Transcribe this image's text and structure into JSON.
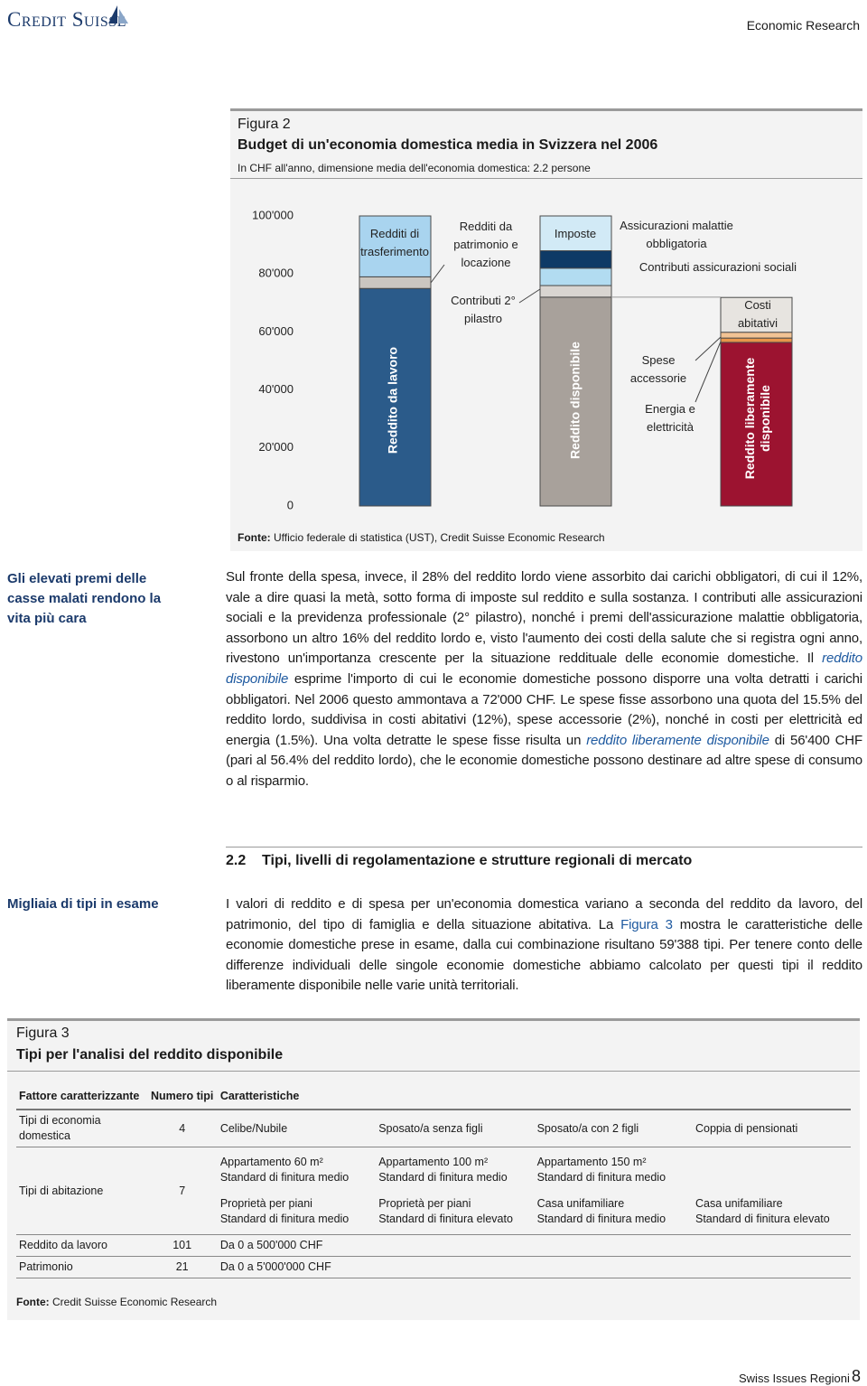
{
  "header": {
    "logo": "Credit Suisse",
    "unit": "Economic Research"
  },
  "figure2": {
    "number": "Figura 2",
    "title": "Budget di un'economia domestica media in Svizzera nel 2006",
    "subtitle": "In CHF all'anno, dimensione media dell'economia domestica: 2.2 persone",
    "source_label": "Fonte:",
    "source": "Ufficio federale di statistica (UST), Credit Suisse Economic Research"
  },
  "chart_data": {
    "type": "stacked_bar",
    "ylim": [
      0,
      100000
    ],
    "yticks": [
      0,
      {
        "value": 20000,
        "label": "20'000"
      },
      {
        "value": 40000,
        "label": "40'000"
      },
      {
        "value": 60000,
        "label": "60'000"
      },
      {
        "value": 80000,
        "label": "80'000"
      },
      {
        "value": 100000,
        "label": "100'000"
      }
    ],
    "grid": false,
    "bars": [
      {
        "segments": [
          {
            "name": "Reddito da lavoro",
            "value": 75000,
            "color": "#2b5b8a"
          },
          {
            "name": "Redditi da patrimonio e locazione",
            "value": 4000,
            "color": "#cbc6c0"
          },
          {
            "name": "Redditi di trasferimento",
            "value": 21000,
            "color": "#a9d4ef"
          }
        ]
      },
      {
        "segments": [
          {
            "name": "Reddito disponibile",
            "value": 72000,
            "color": "#a8a19b"
          },
          {
            "name": "Contributi 2° pilastro",
            "value": 4000,
            "color": "#d9d5d1"
          },
          {
            "name": "Contributi assicurazioni sociali",
            "value": 6000,
            "color": "#b2dcf1"
          },
          {
            "name": "Assicurazioni malattie obbligatoria",
            "value": 6000,
            "color": "#0e3a66"
          },
          {
            "name": "Imposte",
            "value": 12000,
            "color": "#d2eaf6"
          }
        ]
      },
      {
        "segments": [
          {
            "name": "Reddito liberamente disponibile",
            "value": 56400,
            "color": "#9c1330"
          },
          {
            "name": "Energia e elettricità",
            "value": 1500,
            "color": "#e8954a"
          },
          {
            "name": "Spese accessorie",
            "value": 2000,
            "color": "#f2c394"
          },
          {
            "name": "Costi abitativi",
            "value": 12000,
            "color": "#e7e4e0"
          }
        ]
      }
    ]
  },
  "body": {
    "sidebar1": "Gli elevati premi delle casse malati rendono la vita più cara",
    "paragraph1": [
      {
        "text": "Sul fronte della spesa, invece, il 28% del reddito lordo viene assorbito dai carichi obbligatori, di cui il 12%, vale a dire quasi la metà, sotto forma di imposte sul reddito e sulla sostanza. I contributi alle assicurazioni sociali e la previdenza professionale (2° pilastro), nonché i premi dell'assicurazione malattie obbligatoria, assorbono un altro 16% del reddito lordo e, visto l'aumento dei costi della salute che si registra ogni anno, rivestono un'importanza crescente per la situazione reddituale delle economie domestiche. Il "
      },
      {
        "text": "reddito disponibile",
        "style": "italic-link"
      },
      {
        "text": " esprime l'importo di cui le economie domestiche possono disporre una volta detratti i carichi obbligatori. Nel 2006 questo ammontava a 72'000 CHF. Le spese fisse assorbono una quota del 15.5% del reddito lordo, suddivisa in costi abitativi (12%), spese accessorie (2%), nonché in costi per elettricità ed energia (1.5%). Una volta detratte le spese fisse risulta un "
      },
      {
        "text": "reddito liberamente disponibile",
        "style": "italic-link"
      },
      {
        "text": " di 56'400 CHF (pari al 56.4% del reddito lordo), che le economie domestiche possono destinare ad altre spese di consumo o al risparmio."
      }
    ],
    "section_number": "2.2",
    "section_title": "Tipi, livelli di regolamentazione e strutture regionali di mercato",
    "sidebar2": "Migliaia di tipi in esame",
    "paragraph2": [
      {
        "text": "I valori di reddito e di spesa per un'economia domestica variano a seconda del reddito da lavoro, del patrimonio, del tipo di famiglia e della situazione abitativa. La "
      },
      {
        "text": "Figura 3",
        "style": "link"
      },
      {
        "text": " mostra le caratteristiche delle economie domestiche prese in esame, dalla cui combinazione risultano 59'388 tipi. Per tenere conto delle differenze individuali delle singole economie domestiche abbiamo calcolato per questi tipi il reddito liberamente disponibile nelle varie unità territoriali."
      }
    ]
  },
  "figure3": {
    "number": "Figura 3",
    "title": "Tipi per l'analisi del reddito disponibile",
    "headers": [
      "Fattore caratterizzante",
      "Numero tipi",
      "Caratteristiche"
    ],
    "rows": [
      {
        "factor": "Tipi di economia domestica",
        "count": 4,
        "cells": [
          [
            [
              "Celibe/Nubile"
            ],
            [
              "Sposato/a senza figli"
            ],
            [
              "Sposato/a con 2 figli"
            ],
            [
              "Coppia di pensionati"
            ]
          ]
        ]
      },
      {
        "factor": "Tipi di abitazione",
        "count": 7,
        "cells": [
          [
            [
              "Appartamento 60 m²",
              "Standard di finitura medio"
            ],
            [
              "Appartamento 100 m²",
              "Standard di finitura medio"
            ],
            [
              "Appartamento 150 m²",
              "Standard di finitura medio"
            ]
          ],
          [
            [
              "Proprietà per piani",
              "Standard di finitura medio"
            ],
            [
              "Proprietà per piani",
              "Standard di finitura elevato"
            ],
            [
              "Casa unifamiliare",
              "Standard di finitura medio"
            ],
            [
              "Casa unifamiliare",
              "Standard di finitura elevato"
            ]
          ]
        ]
      },
      {
        "factor": "Reddito da lavoro",
        "count": 101,
        "cells": [
          [
            [
              "Da 0 a 500'000 CHF"
            ]
          ]
        ]
      },
      {
        "factor": "Patrimonio",
        "count": 21,
        "cells": [
          [
            [
              "Da 0 a 5'000'000 CHF"
            ]
          ]
        ]
      }
    ],
    "source_label": "Fonte:",
    "source": "Credit Suisse Economic Research"
  },
  "footer": {
    "publication": "Swiss Issues Regioni",
    "page": 8
  }
}
